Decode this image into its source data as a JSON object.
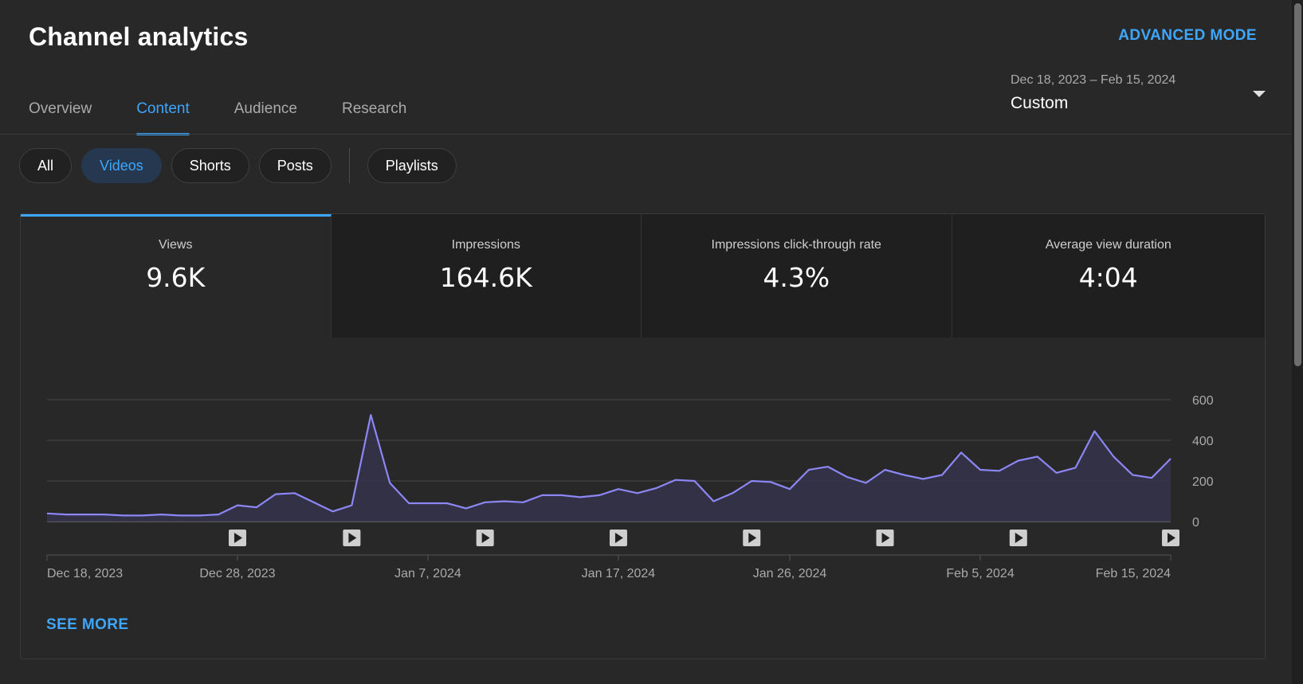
{
  "header": {
    "title": "Channel analytics",
    "advanced_mode": "ADVANCED MODE"
  },
  "tabs": [
    {
      "label": "Overview"
    },
    {
      "label": "Content",
      "active": true
    },
    {
      "label": "Audience"
    },
    {
      "label": "Research"
    }
  ],
  "date_picker": {
    "range": "Dec 18, 2023 – Feb 15, 2024",
    "preset": "Custom"
  },
  "filters": {
    "all": "All",
    "videos": "Videos",
    "shorts": "Shorts",
    "posts": "Posts",
    "playlists": "Playlists",
    "selected": "Videos"
  },
  "metrics": [
    {
      "label": "Views",
      "value": "9.6K"
    },
    {
      "label": "Impressions",
      "value": "164.6K"
    },
    {
      "label": "Impressions click-through rate",
      "value": "4.3%"
    },
    {
      "label": "Average view duration",
      "value": "4:04"
    }
  ],
  "see_more": "SEE MORE",
  "colors": {
    "accent": "#3ea6ff",
    "line": "#8c87f5",
    "area": "#34324a",
    "background": "#282828"
  },
  "chart_data": {
    "type": "area",
    "metric": "Views",
    "yticks": [
      "600",
      "400",
      "200",
      "0"
    ],
    "ylim": [
      0,
      600
    ],
    "xticks": [
      "Dec 18, 2023",
      "Dec 28, 2023",
      "Jan 7, 2024",
      "Jan 17, 2024",
      "Jan 26, 2024",
      "Feb 5, 2024",
      "Feb 15, 2024"
    ],
    "x_start": "Dec 18, 2023",
    "x_end": "Feb 15, 2024",
    "values": [
      40,
      35,
      35,
      35,
      30,
      30,
      35,
      30,
      30,
      35,
      80,
      70,
      135,
      140,
      95,
      50,
      80,
      525,
      190,
      90,
      90,
      90,
      65,
      95,
      100,
      95,
      130,
      130,
      120,
      130,
      160,
      140,
      165,
      205,
      200,
      100,
      140,
      200,
      195,
      160,
      255,
      270,
      220,
      190,
      255,
      230,
      210,
      230,
      340,
      255,
      250,
      300,
      320,
      240,
      265,
      445,
      320,
      230,
      215,
      310
    ],
    "video_published": [
      "Dec 28, 2023",
      "Jan 3, 2024",
      "Jan 10, 2024",
      "Jan 17, 2024",
      "Jan 24, 2024",
      "Jan 31, 2024",
      "Feb 7, 2024",
      "Feb 15, 2024"
    ]
  }
}
